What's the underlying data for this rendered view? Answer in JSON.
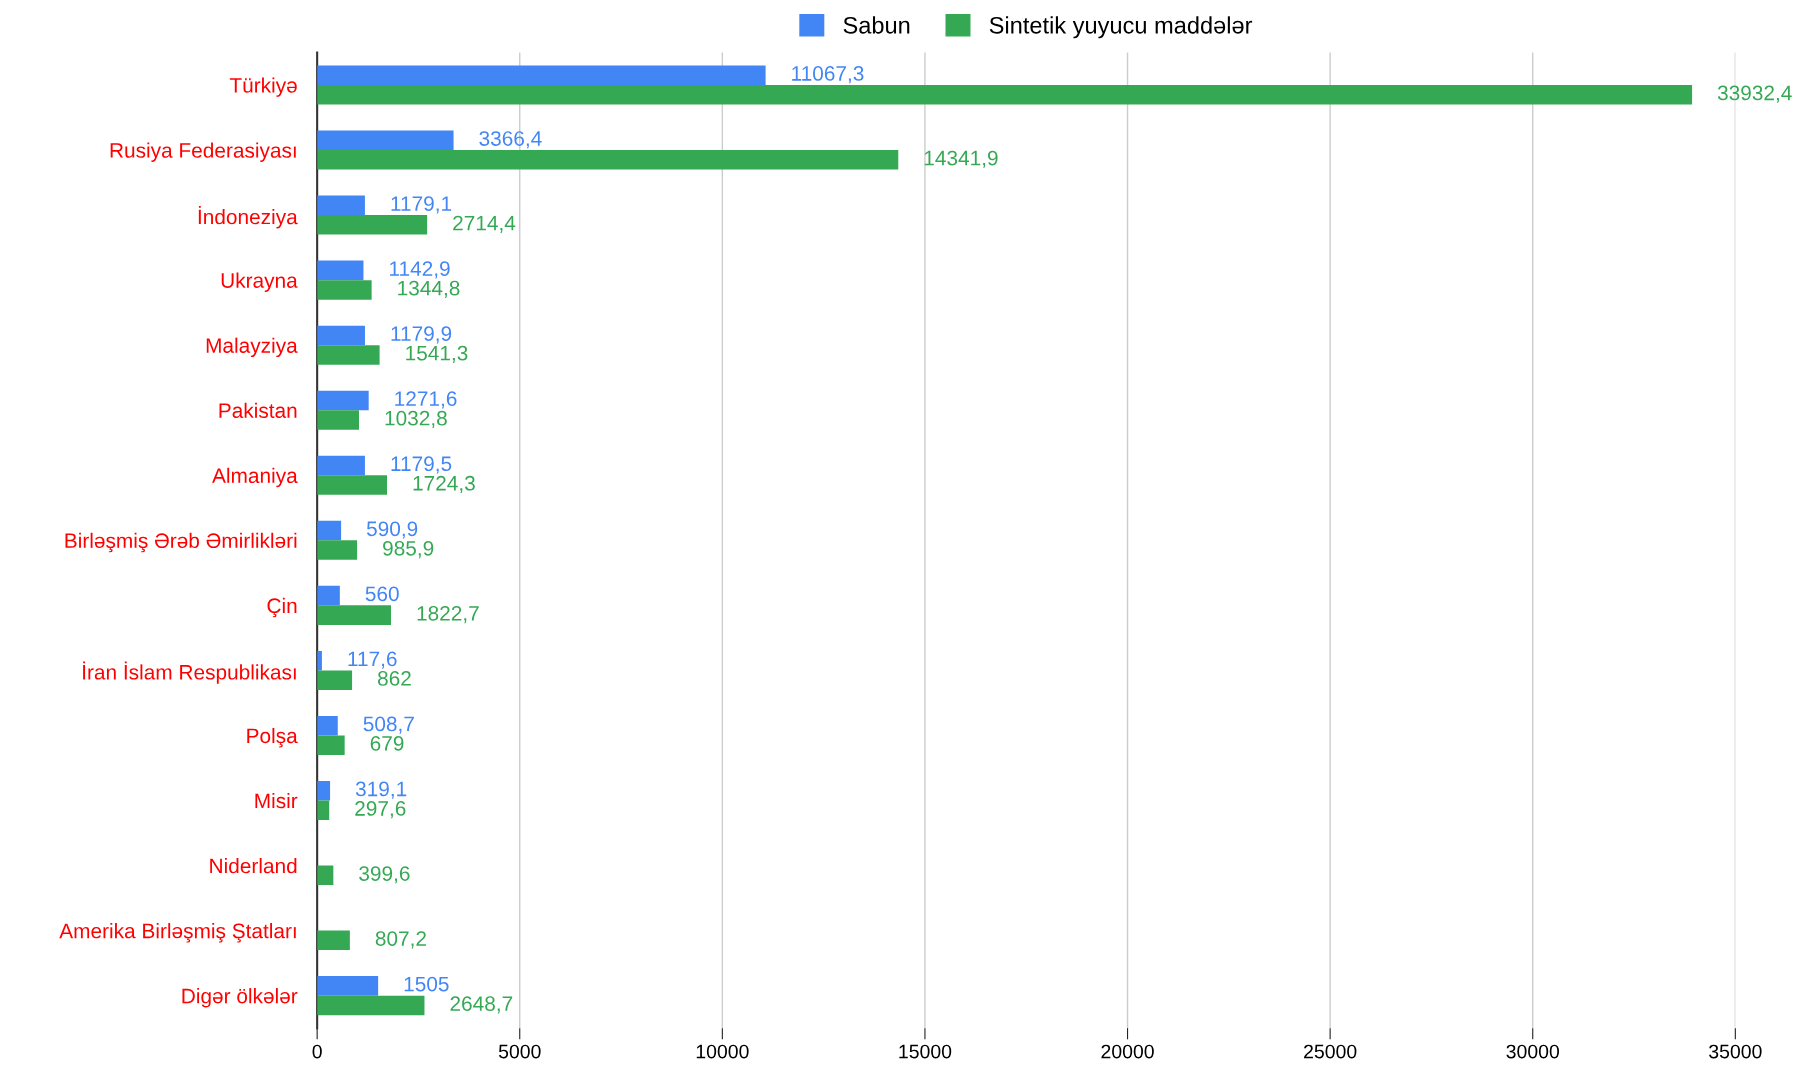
{
  "chart_data": {
    "type": "bar",
    "orientation": "horizontal",
    "categories": [
      "Türkiyə",
      "Rusiya Federasiyası",
      "İndoneziya",
      "Ukrayna",
      "Malayziya",
      "Pakistan",
      "Almaniya",
      "Birləşmiş Ərəb Əmirlikləri",
      "Çin",
      "İran İslam Respublikası",
      "Polşa",
      "Misir",
      "Niderland",
      "Amerika Birləşmiş Ştatları",
      "Digər ölkələr"
    ],
    "series": [
      {
        "name": "Sabun",
        "color": "#4285f4",
        "values": [
          11067.3,
          3366.4,
          1179.1,
          1142.9,
          1179.9,
          1271.6,
          1179.5,
          590.9,
          560,
          117.6,
          508.7,
          319.1,
          null,
          null,
          1505
        ],
        "value_labels": [
          "11067,3",
          "3366,4",
          "1179,1",
          "1142,9",
          "1179,9",
          "1271,6",
          "1179,5",
          "590,9",
          "560",
          "117,6",
          "508,7",
          "319,1",
          null,
          null,
          "1505"
        ]
      },
      {
        "name": "Sintetik yuyucu maddələr",
        "color": "#34a853",
        "values": [
          33932.4,
          14341.9,
          2714.4,
          1344.8,
          1541.3,
          1032.8,
          1724.3,
          985.9,
          1822.7,
          862,
          679,
          297.6,
          399.6,
          807.2,
          2648.7
        ],
        "value_labels": [
          "33932,4",
          "14341,9",
          "2714,4",
          "1344,8",
          "1541,3",
          "1032,8",
          "1724,3",
          "985,9",
          "1822,7",
          "862",
          "679",
          "297,6",
          "399,6",
          "807,2",
          "2648,7"
        ]
      }
    ],
    "xlim": [
      0,
      35000
    ],
    "xticks": [
      0,
      5000,
      10000,
      15000,
      20000,
      25000,
      30000,
      35000
    ],
    "grid": "x",
    "legend": "top"
  }
}
